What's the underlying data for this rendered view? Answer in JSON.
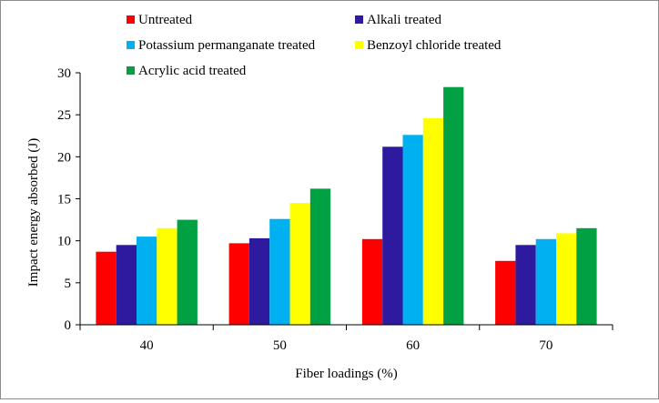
{
  "chart_data": {
    "type": "bar",
    "title": "",
    "xlabel": "Fiber loadings (%)",
    "ylabel": "Impact energy absorbed (J)",
    "categories": [
      "40",
      "50",
      "60",
      "70"
    ],
    "ylim": [
      0,
      30
    ],
    "yticks": [
      "0",
      "5",
      "10",
      "15",
      "20",
      "25",
      "30"
    ],
    "grid": false,
    "legend_position": "top",
    "series": [
      {
        "name": "Untreated",
        "color": "#ff0000",
        "values": [
          8.7,
          9.7,
          10.2,
          7.6
        ]
      },
      {
        "name": "Alkali treated",
        "color": "#2e1a9e",
        "values": [
          9.5,
          10.3,
          21.2,
          9.5
        ]
      },
      {
        "name": "Potassium permanganate treated",
        "color": "#00b0f0",
        "values": [
          10.5,
          12.6,
          22.6,
          10.2
        ]
      },
      {
        "name": "Benzoyl chloride treated",
        "color": "#ffff00",
        "values": [
          11.5,
          14.5,
          24.6,
          10.9
        ]
      },
      {
        "name": "Acrylic acid treated",
        "color": "#00a043",
        "values": [
          12.5,
          16.2,
          28.3,
          11.5
        ]
      }
    ]
  }
}
